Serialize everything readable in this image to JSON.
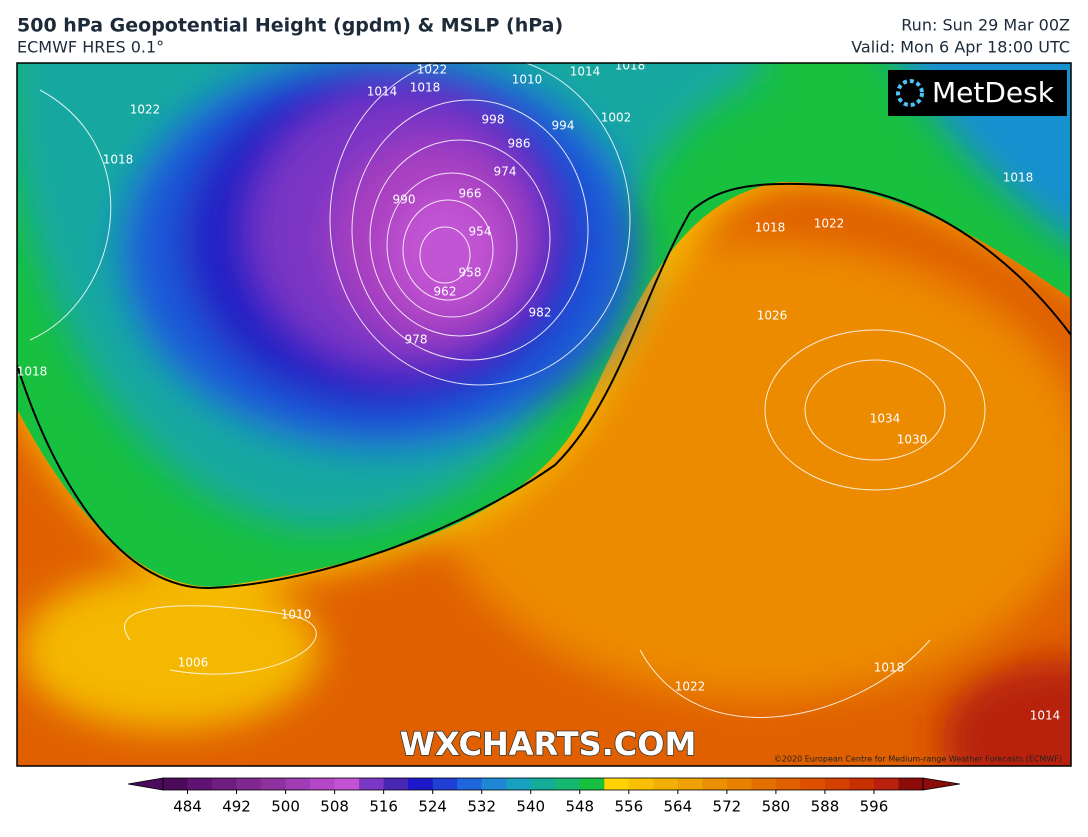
{
  "header": {
    "title": "500 hPa Geopotential Height (gpdm) & MSLP (hPa)",
    "subtitle": "ECMWF HRES 0.1°",
    "run": "Run: Sun 29 Mar 00Z",
    "valid": "Valid: Mon 6 Apr 18:00 UTC"
  },
  "map": {
    "logo": "MetDesk",
    "watermark": "WXCHARTS.COM",
    "copyright": "©2020 European Centre for Medium-range Weather Forecasts (ECMWF)",
    "isobar_labels": [
      1022,
      1018,
      1014,
      1010,
      1014,
      1018,
      998,
      994,
      1002,
      986,
      974,
      966,
      990,
      954,
      958,
      962,
      978,
      982,
      1022,
      1018,
      1018,
      1022,
      1018,
      1034,
      1030,
      1010,
      1006,
      1018,
      1022,
      1014,
      1018,
      1026
    ]
  },
  "colorbar": {
    "lim": [
      480,
      604
    ],
    "ticks": [
      484,
      492,
      500,
      508,
      516,
      524,
      532,
      540,
      548,
      556,
      564,
      572,
      580,
      588,
      596
    ],
    "colors": [
      "#4b0a5a",
      "#5e1470",
      "#6e1e80",
      "#7e2890",
      "#8e32a0",
      "#a03cb4",
      "#b446c8",
      "#c254d4",
      "#7a36c4",
      "#4a26b4",
      "#1a18c8",
      "#1e40d4",
      "#1e66dc",
      "#1e88d6",
      "#18a0c0",
      "#14ae98",
      "#14b870",
      "#18c040",
      "#ffd200",
      "#f8c000",
      "#f4b000",
      "#f0a000",
      "#ec9000",
      "#e88000",
      "#e47000",
      "#e06000",
      "#dc5000",
      "#d44000",
      "#c83000",
      "#b82010",
      "#8c0c0c"
    ]
  }
}
